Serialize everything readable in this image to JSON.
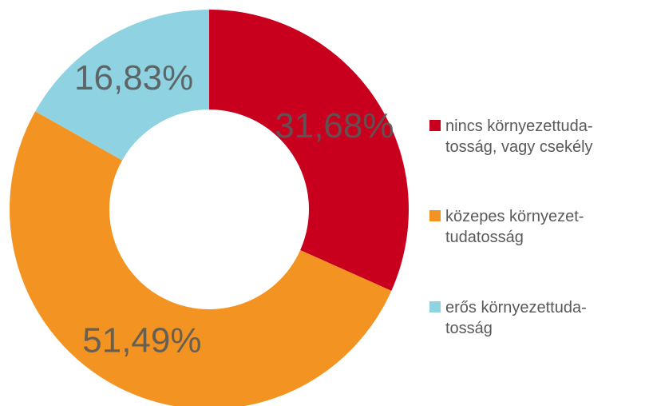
{
  "chart_data": {
    "type": "donut",
    "series": [
      {
        "name": "nincs környezettuda-\ntosság, vagy csekély",
        "color": "#c8001e"
      },
      {
        "name": "közepes környezet-\ntudatosság",
        "color": "#f39422"
      },
      {
        "name": "erős környezettuda-\ntosság",
        "color": "#8fd3e3"
      }
    ],
    "values": [
      31.68,
      51.49,
      16.83
    ],
    "value_labels": [
      "31,68%",
      "51,49%",
      "16,83%"
    ],
    "legend": "right"
  }
}
